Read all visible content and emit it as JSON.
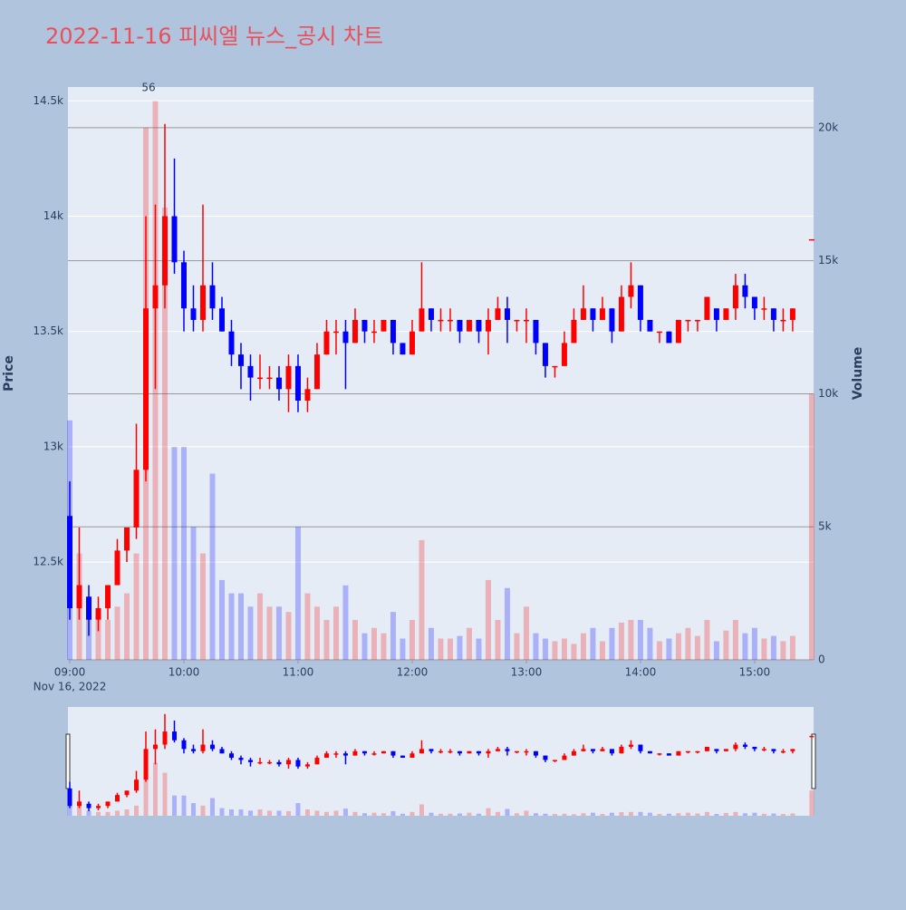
{
  "chart_data": {
    "type": "candlestick",
    "title": "2022-11-16 피씨엘 뉴스_공시 차트",
    "y_label": "Price",
    "y2_label": "Volume",
    "x_sublabel": "Nov 16, 2022",
    "increasing_color": "#ff0000",
    "decreasing_color": "#0000ff",
    "x": [
      "09:00",
      "09:05",
      "09:10",
      "09:15",
      "09:20",
      "09:25",
      "09:30",
      "09:35",
      "09:40",
      "09:45",
      "09:50",
      "09:55",
      "10:00",
      "10:05",
      "10:10",
      "10:15",
      "10:20",
      "10:25",
      "10:30",
      "10:35",
      "10:40",
      "10:45",
      "10:50",
      "10:55",
      "11:00",
      "11:05",
      "11:10",
      "11:15",
      "11:20",
      "11:25",
      "11:30",
      "11:35",
      "11:40",
      "11:45",
      "11:50",
      "11:55",
      "12:00",
      "12:05",
      "12:10",
      "12:15",
      "12:20",
      "12:25",
      "12:30",
      "12:35",
      "12:40",
      "12:45",
      "12:50",
      "12:55",
      "13:00",
      "13:05",
      "13:10",
      "13:15",
      "13:20",
      "13:25",
      "13:30",
      "13:35",
      "13:40",
      "13:45",
      "13:50",
      "13:55",
      "14:00",
      "14:05",
      "14:10",
      "14:15",
      "14:20",
      "14:25",
      "14:30",
      "14:35",
      "14:40",
      "14:45",
      "14:50",
      "14:55",
      "15:00",
      "15:05",
      "15:10",
      "15:15",
      "15:20",
      "15:30"
    ],
    "open": [
      12700,
      12300,
      12350,
      12250,
      12300,
      12400,
      12550,
      12650,
      12900,
      13600,
      13700,
      14000,
      13800,
      13600,
      13550,
      13700,
      13600,
      13500,
      13400,
      13350,
      13300,
      13300,
      13300,
      13250,
      13350,
      13200,
      13250,
      13400,
      13500,
      13500,
      13450,
      13550,
      13500,
      13500,
      13550,
      13450,
      13400,
      13500,
      13600,
      13550,
      13550,
      13550,
      13500,
      13550,
      13500,
      13550,
      13600,
      13550,
      13550,
      13550,
      13450,
      13350,
      13350,
      13450,
      13550,
      13600,
      13550,
      13600,
      13500,
      13650,
      13700,
      13550,
      13500,
      13500,
      13450,
      13550,
      13550,
      13550,
      13600,
      13550,
      13600,
      13700,
      13650,
      13600,
      13600,
      13550,
      13550,
      13900
    ],
    "high": [
      12850,
      12650,
      12400,
      12350,
      12400,
      12600,
      12650,
      13100,
      14000,
      14050,
      14400,
      14250,
      13850,
      13700,
      14050,
      13800,
      13650,
      13550,
      13450,
      13400,
      13400,
      13350,
      13350,
      13400,
      13400,
      13300,
      13450,
      13550,
      13550,
      13550,
      13600,
      13550,
      13550,
      13550,
      13550,
      13450,
      13550,
      13800,
      13600,
      13600,
      13600,
      13550,
      13550,
      13550,
      13600,
      13650,
      13650,
      13550,
      13600,
      13550,
      13450,
      13350,
      13500,
      13600,
      13700,
      13600,
      13650,
      13600,
      13700,
      13800,
      13700,
      13550,
      13500,
      13500,
      13550,
      13550,
      13550,
      13650,
      13600,
      13600,
      13750,
      13750,
      13650,
      13650,
      13600,
      13600,
      13600,
      13900
    ],
    "low": [
      12250,
      12250,
      12180,
      12200,
      12250,
      12400,
      12500,
      12600,
      12850,
      13250,
      13600,
      13750,
      13500,
      13500,
      13500,
      13550,
      13500,
      13350,
      13250,
      13200,
      13250,
      13250,
      13200,
      13150,
      13150,
      13150,
      13250,
      13400,
      13400,
      13250,
      13450,
      13450,
      13450,
      13500,
      13400,
      13400,
      13400,
      13500,
      13500,
      13500,
      13500,
      13450,
      13500,
      13450,
      13400,
      13550,
      13450,
      13500,
      13450,
      13400,
      13300,
      13300,
      13350,
      13450,
      13550,
      13500,
      13550,
      13450,
      13500,
      13600,
      13500,
      13500,
      13450,
      13450,
      13450,
      13500,
      13500,
      13550,
      13500,
      13550,
      13550,
      13600,
      13550,
      13550,
      13500,
      13500,
      13500,
      13900
    ],
    "close": [
      12300,
      12400,
      12250,
      12300,
      12400,
      12550,
      12650,
      12900,
      13600,
      13700,
      14000,
      13800,
      13600,
      13550,
      13700,
      13600,
      13500,
      13400,
      13350,
      13300,
      13300,
      13300,
      13250,
      13350,
      13200,
      13250,
      13400,
      13500,
      13500,
      13450,
      13550,
      13500,
      13500,
      13550,
      13450,
      13400,
      13500,
      13600,
      13550,
      13550,
      13550,
      13500,
      13550,
      13500,
      13550,
      13600,
      13550,
      13550,
      13550,
      13450,
      13350,
      13350,
      13450,
      13550,
      13600,
      13550,
      13600,
      13500,
      13650,
      13700,
      13550,
      13500,
      13500,
      13450,
      13550,
      13550,
      13550,
      13650,
      13550,
      13600,
      13700,
      13650,
      13600,
      13600,
      13550,
      13550,
      13600,
      13900
    ],
    "volume": [
      9000,
      4000,
      2000,
      1500,
      1500,
      2000,
      2500,
      4000,
      20000,
      21000,
      17000,
      8000,
      8000,
      5000,
      4000,
      7000,
      3000,
      2500,
      2500,
      2000,
      2500,
      2000,
      2000,
      1800,
      5000,
      2500,
      2000,
      1500,
      2000,
      2800,
      1500,
      1000,
      1200,
      1000,
      1800,
      800,
      1500,
      4500,
      1200,
      800,
      800,
      900,
      1200,
      800,
      3000,
      1500,
      2700,
      1000,
      2000,
      1000,
      800,
      700,
      800,
      600,
      1000,
      1200,
      700,
      1200,
      1400,
      1500,
      1500,
      1200,
      700,
      800,
      1000,
      1200,
      900,
      1500,
      700,
      1100,
      1500,
      1000,
      1200,
      800,
      900,
      700,
      900,
      10000
    ],
    "xlim": [
      "09:00",
      "15:31"
    ],
    "xticks": [
      "09:00",
      "10:00",
      "11:00",
      "12:00",
      "13:00",
      "14:00",
      "15:00"
    ],
    "ylim": [
      12076,
      14560
    ],
    "yticks": [
      {
        "value": 12500,
        "label": "12.5k"
      },
      {
        "value": 13000,
        "label": "13k"
      },
      {
        "value": 13500,
        "label": "13.5k"
      },
      {
        "value": 14000,
        "label": "14k"
      },
      {
        "value": 14500,
        "label": "14.5k"
      }
    ],
    "y2lim": [
      0,
      21530
    ],
    "y2ticks": [
      0,
      {
        "value": 5000,
        "label": "5k"
      },
      {
        "value": 10000,
        "label": "10k"
      },
      {
        "value": 15000,
        "label": "15k"
      },
      {
        "value": 20000,
        "label": "20k"
      }
    ],
    "annotation": {
      "x": "09:40",
      "text": "56"
    }
  }
}
